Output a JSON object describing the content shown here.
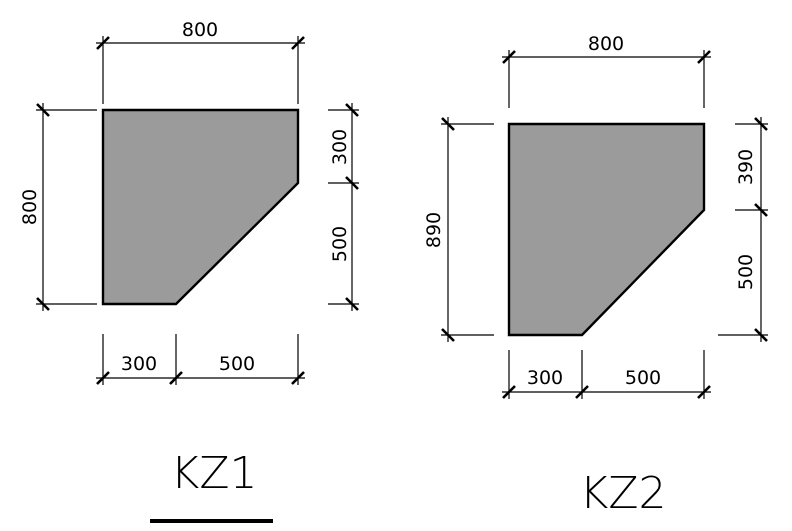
{
  "colors": {
    "section_fill": "#9b9b9b",
    "line": "#000000",
    "background": "#ffffff"
  },
  "kz1": {
    "title": "KZ1",
    "top": "800",
    "left": "800",
    "right_upper": "300",
    "right_lower": "500",
    "bottom_left": "300",
    "bottom_right": "500"
  },
  "kz2": {
    "title": "KZ2",
    "top": "800",
    "left": "890",
    "right_upper": "390",
    "right_lower": "500",
    "bottom_left": "300",
    "bottom_right": "500"
  }
}
